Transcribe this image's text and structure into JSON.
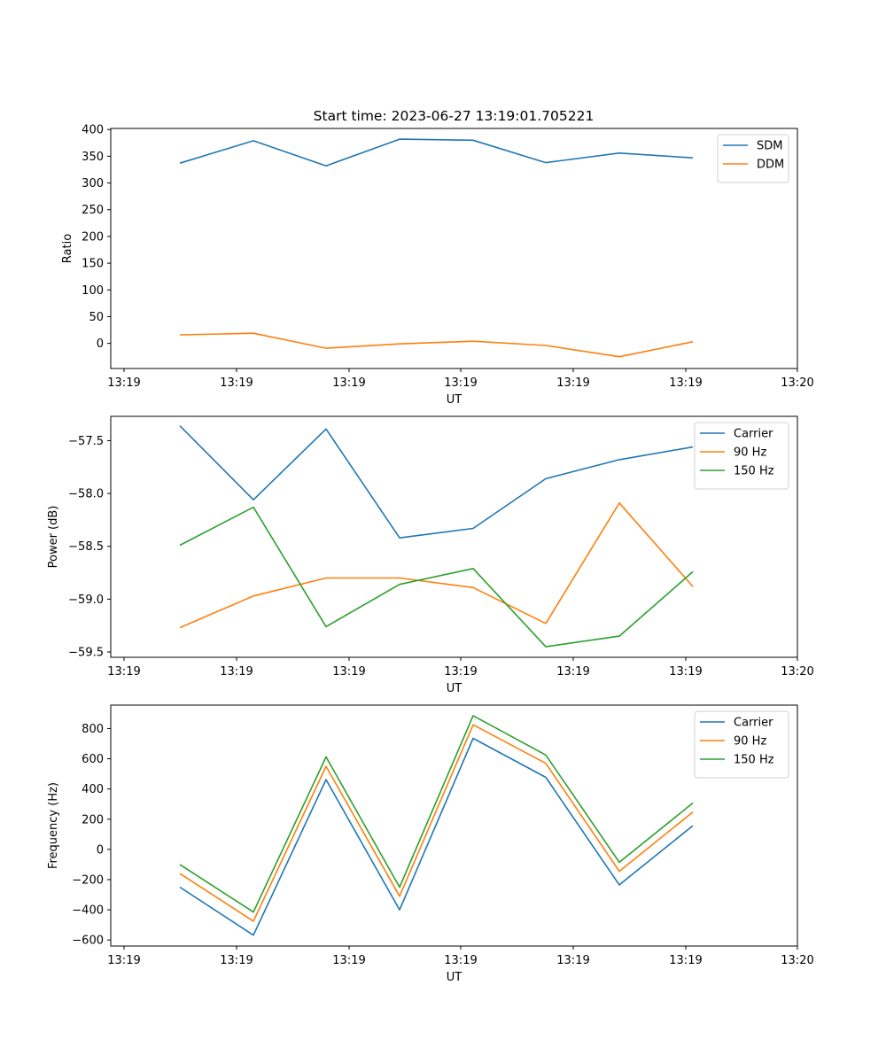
{
  "figure": {
    "title": "Start time: 2023-06-27 13:19:01.705221"
  },
  "chart_data": [
    {
      "type": "line",
      "xlabel": "UT",
      "ylabel": "Ratio",
      "x_tick_labels": [
        "13:19",
        "13:19",
        "13:19",
        "13:19",
        "13:19",
        "13:19",
        "13:19",
        "13:20"
      ],
      "ylim": [
        -47,
        402
      ],
      "y_ticks": [
        0,
        50,
        100,
        150,
        200,
        250,
        300,
        350,
        400
      ],
      "grid": false,
      "legend_position": "top-right",
      "series": [
        {
          "name": "SDM",
          "color": "#1f77b4",
          "values": [
            337,
            379,
            332,
            382,
            380,
            338,
            356,
            347
          ]
        },
        {
          "name": "DDM",
          "color": "#ff7f0e",
          "values": [
            16,
            19,
            -9,
            -1,
            4,
            -4,
            -25,
            3
          ]
        }
      ]
    },
    {
      "type": "line",
      "xlabel": "UT",
      "ylabel": "Power (dB)",
      "x_tick_labels": [
        "13:19",
        "13:19",
        "13:19",
        "13:19",
        "13:19",
        "13:19",
        "13:19",
        "13:20"
      ],
      "ylim": [
        -59.55,
        -57.27
      ],
      "y_ticks": [
        -59.5,
        -59.0,
        -58.5,
        -58.0,
        -57.5
      ],
      "y_tick_labels": [
        "−59.5",
        "−59.0",
        "−58.5",
        "−58.0",
        "−57.5"
      ],
      "grid": false,
      "legend_position": "top-right",
      "series": [
        {
          "name": "Carrier",
          "color": "#1f77b4",
          "values": [
            -57.36,
            -58.06,
            -57.39,
            -58.42,
            -58.33,
            -57.86,
            -57.68,
            -57.56
          ]
        },
        {
          "name": "90 Hz",
          "color": "#ff7f0e",
          "values": [
            -59.27,
            -58.97,
            -58.8,
            -58.8,
            -58.89,
            -59.23,
            -58.09,
            -58.88
          ]
        },
        {
          "name": "150 Hz",
          "color": "#2ca02c",
          "values": [
            -58.49,
            -58.13,
            -59.26,
            -58.86,
            -58.71,
            -59.45,
            -59.35,
            -58.74
          ]
        }
      ]
    },
    {
      "type": "line",
      "xlabel": "UT",
      "ylabel": "Frequency (Hz)",
      "x_tick_labels": [
        "13:19",
        "13:19",
        "13:19",
        "13:19",
        "13:19",
        "13:19",
        "13:19",
        "13:20"
      ],
      "ylim": [
        -640,
        955
      ],
      "y_ticks": [
        -600,
        -400,
        -200,
        0,
        200,
        400,
        600,
        800
      ],
      "y_tick_labels": [
        "−600",
        "−400",
        "−200",
        "0",
        "200",
        "400",
        "600",
        "800"
      ],
      "grid": false,
      "legend_position": "top-right",
      "series": [
        {
          "name": "Carrier",
          "color": "#1f77b4",
          "values": [
            -250,
            -568,
            462,
            -400,
            735,
            477,
            -235,
            157
          ]
        },
        {
          "name": "90 Hz",
          "color": "#ff7f0e",
          "values": [
            -160,
            -475,
            550,
            -310,
            825,
            570,
            -145,
            247
          ]
        },
        {
          "name": "150 Hz",
          "color": "#2ca02c",
          "values": [
            -100,
            -415,
            612,
            -250,
            885,
            625,
            -85,
            307
          ]
        }
      ]
    }
  ]
}
